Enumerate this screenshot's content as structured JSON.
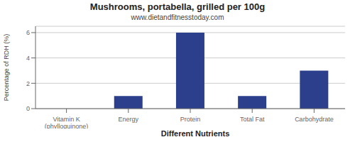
{
  "chart_data": {
    "type": "bar",
    "title": "Mushrooms, portabella, grilled per 100g",
    "subtitle": "www.dietandfitnesstoday.com",
    "xlabel": "Different Nutrients",
    "ylabel": "Percentage of RDH (%)",
    "categories": [
      "Vitamin K (phylloquinone)",
      "Energy",
      "Protein",
      "Total Fat",
      "Carbohydrate"
    ],
    "values": [
      0,
      1.0,
      6.0,
      1.0,
      3.0
    ],
    "color": "#2b3f8c",
    "ylim": [
      0,
      6.5
    ],
    "yticks": [
      0,
      2,
      4,
      6
    ],
    "grid": true
  }
}
